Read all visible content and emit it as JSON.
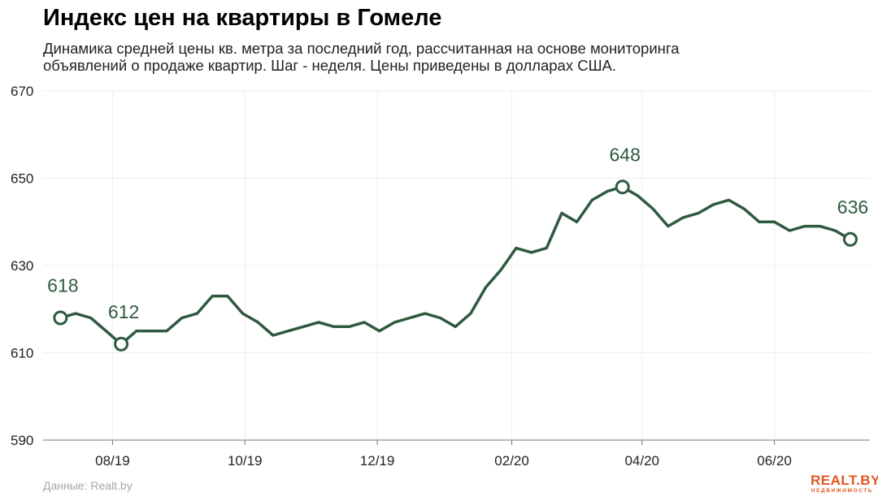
{
  "header": {
    "title": "Индекс цен на квартиры в Гомеле",
    "subtitle": "Динамика средней цены кв. метра за последний год, рассчитанная на основе мониторинга объявлений о продаже квартир. Шаг - неделя. Цены приведены в долларах США."
  },
  "footer": {
    "source": "Данные: Realt.by",
    "logo_main": "REALT.BY",
    "logo_sub": "НЕДВИЖИМОСТЬ"
  },
  "chart_data": {
    "type": "line",
    "title": "Индекс цен на квартиры в Гомеле",
    "xlabel": "",
    "ylabel": "",
    "ylim": [
      590,
      670
    ],
    "yticks": [
      590,
      610,
      630,
      650,
      670
    ],
    "xlim": [
      "2019-06-30",
      "2020-07-15"
    ],
    "xticks": [
      {
        "date": "2019-08-01",
        "label": "08/19"
      },
      {
        "date": "2019-10-01",
        "label": "10/19"
      },
      {
        "date": "2019-12-01",
        "label": "12/19"
      },
      {
        "date": "2020-02-01",
        "label": "02/20"
      },
      {
        "date": "2020-04-01",
        "label": "04/20"
      },
      {
        "date": "2020-06-01",
        "label": "06/20"
      }
    ],
    "grid": true,
    "line_color": "#2f5a3f",
    "series": [
      {
        "values": [
          {
            "x": "2019-07-08",
            "y": 618
          },
          {
            "x": "2019-07-15",
            "y": 619
          },
          {
            "x": "2019-07-22",
            "y": 618
          },
          {
            "x": "2019-07-29",
            "y": 615
          },
          {
            "x": "2019-08-05",
            "y": 612
          },
          {
            "x": "2019-08-12",
            "y": 615
          },
          {
            "x": "2019-08-19",
            "y": 615
          },
          {
            "x": "2019-08-26",
            "y": 615
          },
          {
            "x": "2019-09-02",
            "y": 618
          },
          {
            "x": "2019-09-09",
            "y": 619
          },
          {
            "x": "2019-09-16",
            "y": 623
          },
          {
            "x": "2019-09-23",
            "y": 623
          },
          {
            "x": "2019-09-30",
            "y": 619
          },
          {
            "x": "2019-10-07",
            "y": 617
          },
          {
            "x": "2019-10-14",
            "y": 614
          },
          {
            "x": "2019-10-21",
            "y": 615
          },
          {
            "x": "2019-10-28",
            "y": 616
          },
          {
            "x": "2019-11-04",
            "y": 617
          },
          {
            "x": "2019-11-11",
            "y": 616
          },
          {
            "x": "2019-11-18",
            "y": 616
          },
          {
            "x": "2019-11-25",
            "y": 617
          },
          {
            "x": "2019-12-02",
            "y": 615
          },
          {
            "x": "2019-12-09",
            "y": 617
          },
          {
            "x": "2019-12-16",
            "y": 618
          },
          {
            "x": "2019-12-23",
            "y": 619
          },
          {
            "x": "2019-12-30",
            "y": 618
          },
          {
            "x": "2020-01-06",
            "y": 616
          },
          {
            "x": "2020-01-13",
            "y": 619
          },
          {
            "x": "2020-01-20",
            "y": 625
          },
          {
            "x": "2020-01-27",
            "y": 629
          },
          {
            "x": "2020-02-03",
            "y": 634
          },
          {
            "x": "2020-02-10",
            "y": 633
          },
          {
            "x": "2020-02-17",
            "y": 634
          },
          {
            "x": "2020-02-24",
            "y": 642
          },
          {
            "x": "2020-03-02",
            "y": 640
          },
          {
            "x": "2020-03-09",
            "y": 645
          },
          {
            "x": "2020-03-16",
            "y": 647
          },
          {
            "x": "2020-03-23",
            "y": 648
          },
          {
            "x": "2020-03-30",
            "y": 646
          },
          {
            "x": "2020-04-06",
            "y": 643
          },
          {
            "x": "2020-04-13",
            "y": 639
          },
          {
            "x": "2020-04-20",
            "y": 641
          },
          {
            "x": "2020-04-27",
            "y": 642
          },
          {
            "x": "2020-05-04",
            "y": 644
          },
          {
            "x": "2020-05-11",
            "y": 645
          },
          {
            "x": "2020-05-18",
            "y": 643
          },
          {
            "x": "2020-05-25",
            "y": 640
          },
          {
            "x": "2020-06-01",
            "y": 640
          },
          {
            "x": "2020-06-08",
            "y": 638
          },
          {
            "x": "2020-06-15",
            "y": 639
          },
          {
            "x": "2020-06-22",
            "y": 639
          },
          {
            "x": "2020-06-29",
            "y": 638
          },
          {
            "x": "2020-07-06",
            "y": 636
          }
        ]
      }
    ],
    "annotations": [
      {
        "x": "2019-07-08",
        "y": 618,
        "label": "618"
      },
      {
        "x": "2019-08-05",
        "y": 612,
        "label": "612"
      },
      {
        "x": "2020-03-23",
        "y": 648,
        "label": "648"
      },
      {
        "x": "2020-07-06",
        "y": 636,
        "label": "636"
      }
    ]
  }
}
